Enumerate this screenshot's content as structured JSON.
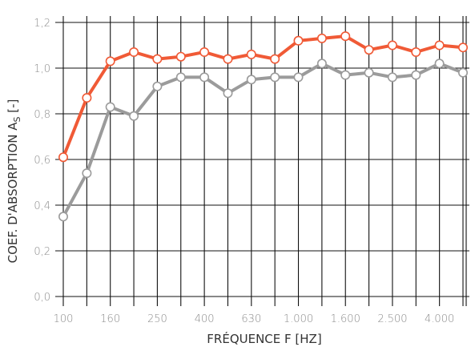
{
  "chart_data": {
    "type": "line",
    "xlabel": "FRÉQUENCE F [HZ]",
    "ylabel_main": "COEF. D'ABSORPTION A",
    "ylabel_sub": "S",
    "ylabel_unit": " [-]",
    "x_tick_labels": [
      "100",
      "160",
      "250",
      "400",
      "630",
      "1.000",
      "1.600",
      "2.500",
      "4.000"
    ],
    "y_tick_labels": [
      "0,0",
      "0,2",
      "0,4",
      "0,6",
      "0,8",
      "1,0",
      "1,2"
    ],
    "ylim": [
      0,
      1.2
    ],
    "x": [
      "100",
      "125",
      "160",
      "200",
      "250",
      "315",
      "400",
      "500",
      "630",
      "800",
      "1000",
      "1250",
      "1600",
      "2000",
      "2500",
      "3150",
      "4000",
      "5000"
    ],
    "series": [
      {
        "color": "#f05a36",
        "values": [
          0.61,
          0.87,
          1.03,
          1.07,
          1.04,
          1.05,
          1.07,
          1.04,
          1.06,
          1.04,
          1.12,
          1.13,
          1.14,
          1.08,
          1.1,
          1.07,
          1.1,
          1.09
        ]
      },
      {
        "color": "#9b9b9b",
        "values": [
          0.35,
          0.54,
          0.83,
          0.79,
          0.92,
          0.96,
          0.96,
          0.89,
          0.95,
          0.96,
          0.96,
          1.02,
          0.97,
          0.98,
          0.96,
          0.97,
          1.02,
          0.98
        ]
      }
    ],
    "grid": true
  }
}
